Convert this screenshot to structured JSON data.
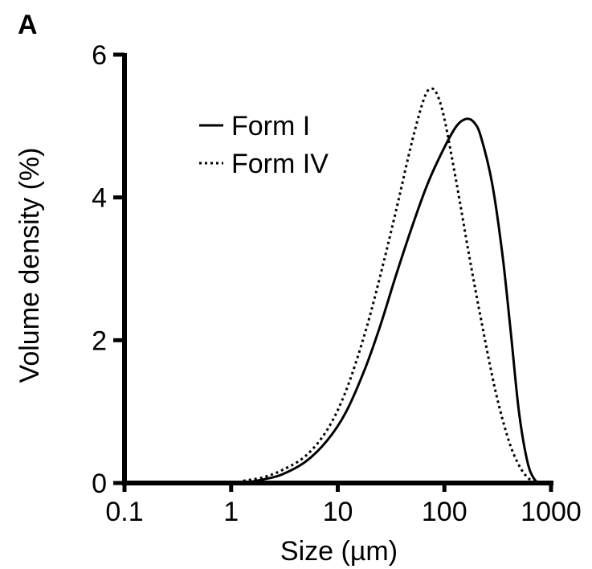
{
  "panel_label": "A",
  "chart_data": {
    "type": "line",
    "title": "",
    "xlabel": "Size (µm)",
    "ylabel": "Volume density (%)",
    "xscale": "log",
    "xlim": [
      0.1,
      1000
    ],
    "ylim": [
      0,
      6
    ],
    "xticks": [
      0.1,
      1,
      10,
      100,
      1000
    ],
    "xtick_labels": [
      "0.1",
      "1",
      "10",
      "100",
      "1000"
    ],
    "yticks": [
      0,
      2,
      4,
      6
    ],
    "ytick_labels": [
      "0",
      "2",
      "4",
      "6"
    ],
    "grid": false,
    "legend": "top-left",
    "series": [
      {
        "name": "Form I",
        "style": "solid",
        "color": "#000000",
        "x": [
          1.3,
          2,
          3,
          5,
          8,
          12,
          18,
          25,
          35,
          50,
          70,
          100,
          130,
          160,
          190,
          220,
          280,
          350,
          420,
          500,
          600,
          700,
          800
        ],
        "y": [
          0.0,
          0.05,
          0.12,
          0.3,
          0.6,
          1.0,
          1.6,
          2.2,
          2.9,
          3.6,
          4.2,
          4.7,
          5.0,
          5.1,
          5.05,
          4.85,
          4.2,
          3.2,
          2.1,
          1.0,
          0.3,
          0.05,
          0.0
        ]
      },
      {
        "name": "Form IV",
        "style": "dotted",
        "color": "#000000",
        "x": [
          1.3,
          2,
          3,
          5,
          8,
          12,
          18,
          25,
          35,
          50,
          65,
          75,
          85,
          100,
          130,
          170,
          220,
          300,
          400,
          500,
          600,
          700,
          800
        ],
        "y": [
          0.03,
          0.08,
          0.18,
          0.38,
          0.75,
          1.3,
          2.1,
          2.9,
          3.8,
          4.8,
          5.4,
          5.52,
          5.45,
          5.1,
          4.2,
          3.2,
          2.3,
          1.3,
          0.6,
          0.25,
          0.08,
          0.02,
          0.0
        ]
      }
    ]
  }
}
